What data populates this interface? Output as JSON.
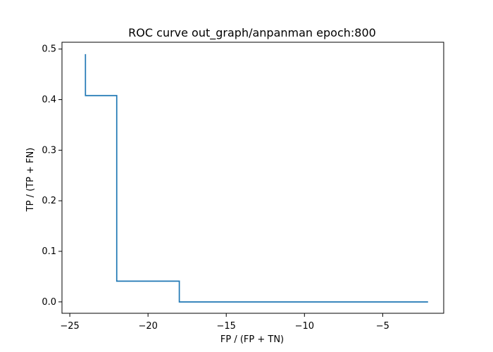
{
  "chart_data": {
    "type": "line",
    "title": "ROC curve out_graph/anpanman epoch:800",
    "xlabel": "FP / (FP + TN)",
    "ylabel": "TP / (TP + FN)",
    "xlim": [
      -25.5,
      -1.1
    ],
    "ylim": [
      -0.0225,
      0.5135
    ],
    "xticks": [
      -25,
      -20,
      -15,
      -10,
      -5
    ],
    "xtick_labels": [
      "−25",
      "−20",
      "−15",
      "−10",
      "−5"
    ],
    "yticks": [
      0.0,
      0.1,
      0.2,
      0.3,
      0.4,
      0.5
    ],
    "ytick_labels": [
      "0.0",
      "0.1",
      "0.2",
      "0.3",
      "0.4",
      "0.5"
    ],
    "grid": false,
    "legend": "none",
    "color": "#1f77b4",
    "series": [
      {
        "x": [
          -24.0,
          -24.0,
          -22.0,
          -22.0,
          -18.0,
          -18.0,
          -2.1
        ],
        "y": [
          0.49,
          0.408,
          0.408,
          0.041,
          0.041,
          0.0,
          0.0
        ]
      }
    ]
  }
}
